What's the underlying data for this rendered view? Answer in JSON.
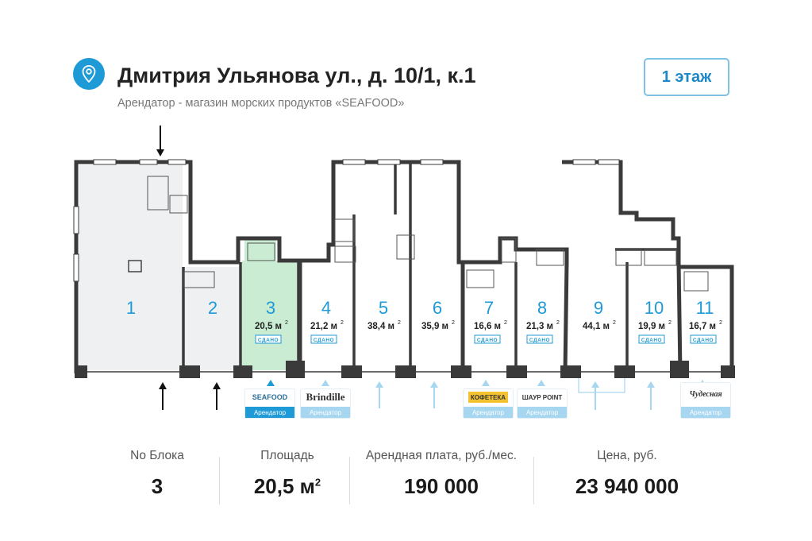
{
  "header": {
    "address": "Дмитрия Ульянова ул., д. 10/1, к.1",
    "tenant_note": "Арендатор - магазин морских продуктов «SEAFOOD»",
    "floor_button": "1 этаж",
    "location_icon": "map-pin-icon"
  },
  "plan": {
    "units": [
      {
        "num": "1",
        "area": ""
      },
      {
        "num": "2",
        "area": ""
      },
      {
        "num": "3",
        "area": "20,5 м",
        "status": "СДАНО",
        "selected": true
      },
      {
        "num": "4",
        "area": "21,2 м",
        "status": "СДАНО"
      },
      {
        "num": "5",
        "area": "38,4 м"
      },
      {
        "num": "6",
        "area": "35,9 м"
      },
      {
        "num": "7",
        "area": "16,6 м",
        "status": "СДАНО"
      },
      {
        "num": "8",
        "area": "21,3 м",
        "status": "СДАНО"
      },
      {
        "num": "9",
        "area": "44,1 м"
      },
      {
        "num": "10",
        "area": "19,9 м",
        "status": "СДАНО"
      },
      {
        "num": "11",
        "area": "16,7 м",
        "status": "СДАНО"
      }
    ],
    "sq_mark": "2",
    "tenants": [
      {
        "logo": "SEAFOOD",
        "tag": "Арендатор"
      },
      {
        "logo": "Brindille",
        "tag": "Арендатор"
      },
      {
        "logo": "КОФЕТЕКА",
        "tag": "Арендатор"
      },
      {
        "logo": "ШАУР POINT",
        "tag": "Арендатор"
      },
      {
        "logo": "Чудесная",
        "tag": "Арендатор"
      }
    ],
    "highlight_color": "#c9ecd3",
    "accent_color": "#1e9ad6"
  },
  "stats": {
    "block_label": "No Блока",
    "block_value": "3",
    "area_label": "Площадь",
    "area_value": "20,5 м",
    "area_sup": "2",
    "rent_label": "Арендная плата, руб./мес.",
    "rent_value": "190 000",
    "price_label": "Цена, руб.",
    "price_value": "23 940 000"
  }
}
